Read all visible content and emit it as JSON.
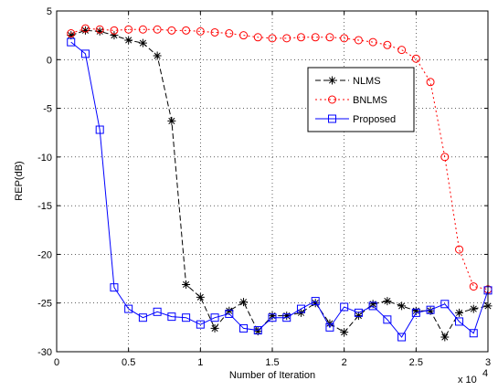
{
  "chart_data": {
    "type": "line",
    "title": "",
    "xlabel": "Number of Iteration",
    "ylabel": "REP(dB)",
    "x_multiplier_label": "x 10",
    "x_multiplier_exp": "4",
    "xlim": [
      0,
      3
    ],
    "ylim": [
      -30,
      5
    ],
    "xticks": [
      0,
      0.5,
      1,
      1.5,
      2,
      2.5,
      3
    ],
    "xtick_labels": [
      "0",
      "0.5",
      "1",
      "1.5",
      "2",
      "2.5",
      "3"
    ],
    "yticks": [
      5,
      0,
      -5,
      -10,
      -15,
      -20,
      -25,
      -30
    ],
    "ytick_labels": [
      "5",
      "0",
      "-5",
      "-10",
      "-15",
      "-20",
      "-25",
      "-30"
    ],
    "grid": true,
    "legend_position": "upper-right-inside",
    "x": [
      0.1,
      0.2,
      0.3,
      0.4,
      0.5,
      0.6,
      0.7,
      0.8,
      0.9,
      1.0,
      1.1,
      1.2,
      1.3,
      1.4,
      1.5,
      1.6,
      1.7,
      1.8,
      1.9,
      2.0,
      2.1,
      2.2,
      2.3,
      2.4,
      2.5,
      2.6,
      2.7,
      2.8,
      2.9,
      3.0
    ],
    "series": [
      {
        "name": "NLMS",
        "color": "#000000",
        "line_style": "dashed",
        "marker": "asterisk",
        "values": [
          2.5,
          3.0,
          2.9,
          2.5,
          2.0,
          1.7,
          0.4,
          -6.3,
          -23.1,
          -24.4,
          -27.6,
          -25.8,
          -24.9,
          -27.9,
          -26.3,
          -26.3,
          -26.0,
          -25.0,
          -27.1,
          -28.0,
          -26.3,
          -25.1,
          -24.8,
          -25.3,
          -25.8,
          -25.8,
          -28.5,
          -26.0,
          -25.6,
          -25.3
        ]
      },
      {
        "name": "BNLMS",
        "color": "#ff0000",
        "line_style": "dotted",
        "marker": "circle",
        "values": [
          2.7,
          3.2,
          3.1,
          3.0,
          3.1,
          3.1,
          3.1,
          3.0,
          3.0,
          2.9,
          2.8,
          2.7,
          2.5,
          2.3,
          2.2,
          2.2,
          2.3,
          2.3,
          2.3,
          2.2,
          2.0,
          1.8,
          1.5,
          1.0,
          0.1,
          -2.3,
          -10.0,
          -19.5,
          -23.3,
          -23.6
        ]
      },
      {
        "name": "Proposed",
        "color": "#0000ff",
        "line_style": "solid",
        "marker": "square",
        "values": [
          1.8,
          0.6,
          -7.2,
          -23.4,
          -25.6,
          -26.5,
          -25.9,
          -26.4,
          -26.5,
          -27.2,
          -26.5,
          -26.1,
          -27.6,
          -27.8,
          -26.5,
          -26.5,
          -25.6,
          -24.8,
          -27.5,
          -25.4,
          -26.0,
          -25.3,
          -26.7,
          -28.5,
          -26.0,
          -25.7,
          -25.1,
          -26.9,
          -28.1,
          -23.7
        ]
      }
    ]
  }
}
